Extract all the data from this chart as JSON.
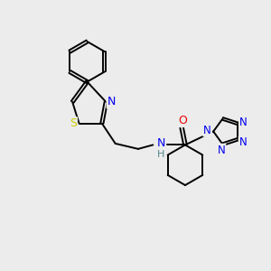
{
  "background_color": "#ececec",
  "atom_colors": {
    "C": "#000000",
    "N": "#0000ee",
    "O": "#ee0000",
    "S": "#cccc00",
    "H": "#558888"
  },
  "figsize": [
    3.0,
    3.0
  ],
  "dpi": 100
}
